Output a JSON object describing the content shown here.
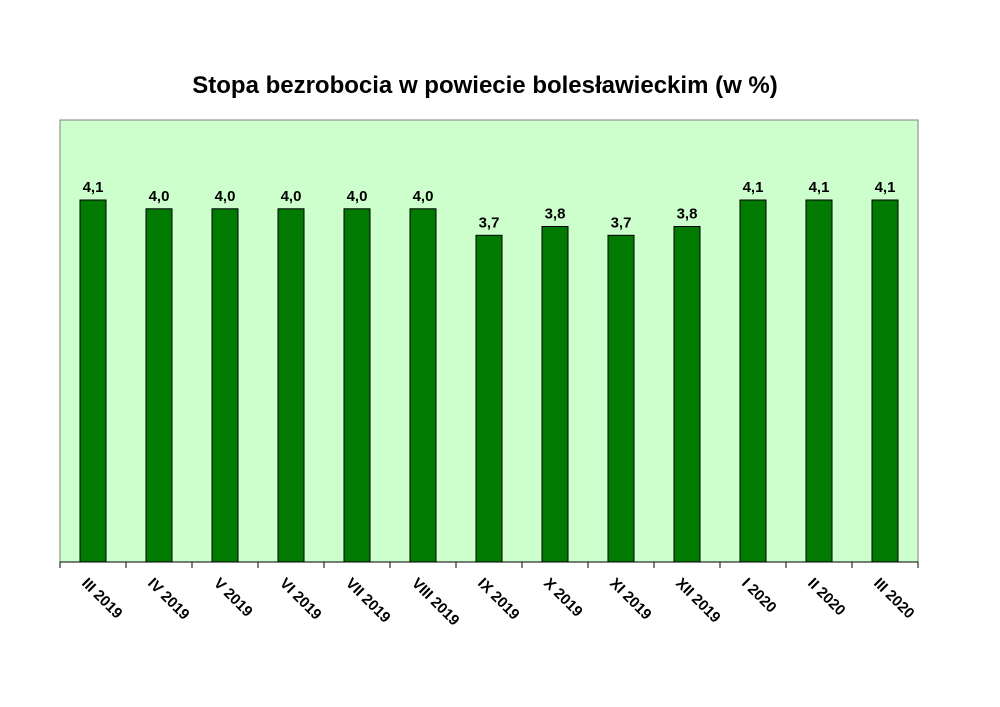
{
  "chart_data": {
    "type": "bar",
    "title": "Stopa bezrobocia w powiecie bolesławieckim (w %)",
    "xlabel": "",
    "ylabel": "",
    "categories": [
      "III 2019",
      "IV 2019",
      "V 2019",
      "VI 2019",
      "VII 2019",
      "VIII 2019",
      "IX 2019",
      "X 2019",
      "XI 2019",
      "XII 2019",
      "I 2020",
      "II 2020",
      "III 2020"
    ],
    "values": [
      4.1,
      4.0,
      4.0,
      4.0,
      4.0,
      4.0,
      3.7,
      3.8,
      3.7,
      3.8,
      4.1,
      4.1,
      4.1
    ],
    "value_labels": [
      "4,1",
      "4,0",
      "4,0",
      "4,0",
      "4,0",
      "4,0",
      "3,7",
      "3,8",
      "3,7",
      "3,8",
      "4,1",
      "4,1",
      "4,1"
    ],
    "ylim": [
      0,
      4.1
    ],
    "grid": false,
    "legend": "none",
    "colors": {
      "bar": "#007a00",
      "plot_background": "#ccffcc",
      "border": "#808080"
    }
  }
}
